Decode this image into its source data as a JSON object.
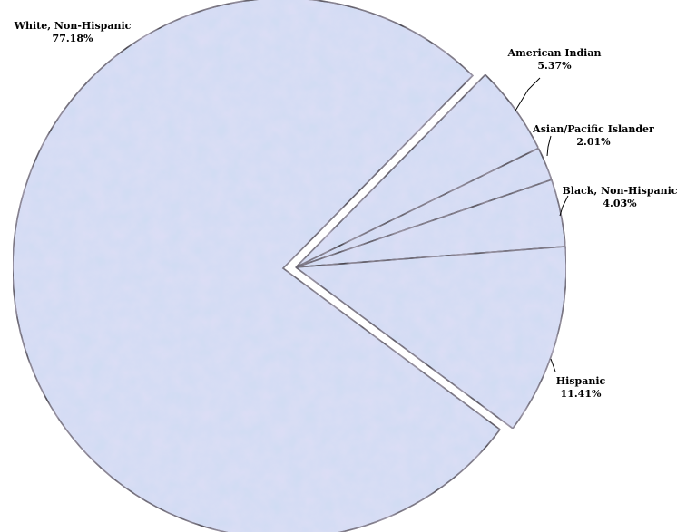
{
  "chart_data": {
    "type": "pie",
    "title": "",
    "legend": "none",
    "labels_shown": "category and percent",
    "categories": [
      "White, Non-Hispanic",
      "American Indian",
      "Asian/Pacific Islander",
      "Black, Non-Hispanic",
      "Hispanic"
    ],
    "values": [
      77.18,
      5.37,
      2.01,
      4.03,
      11.41
    ],
    "value_labels": [
      "77.18%",
      "5.37%",
      "2.01%",
      "4.03%",
      "11.41%"
    ],
    "exploded": [
      false,
      true,
      true,
      true,
      true
    ],
    "fill_color": "#cfdcf3",
    "fill_texture_color": "#b8cdf0",
    "edge_color": "#000000"
  }
}
